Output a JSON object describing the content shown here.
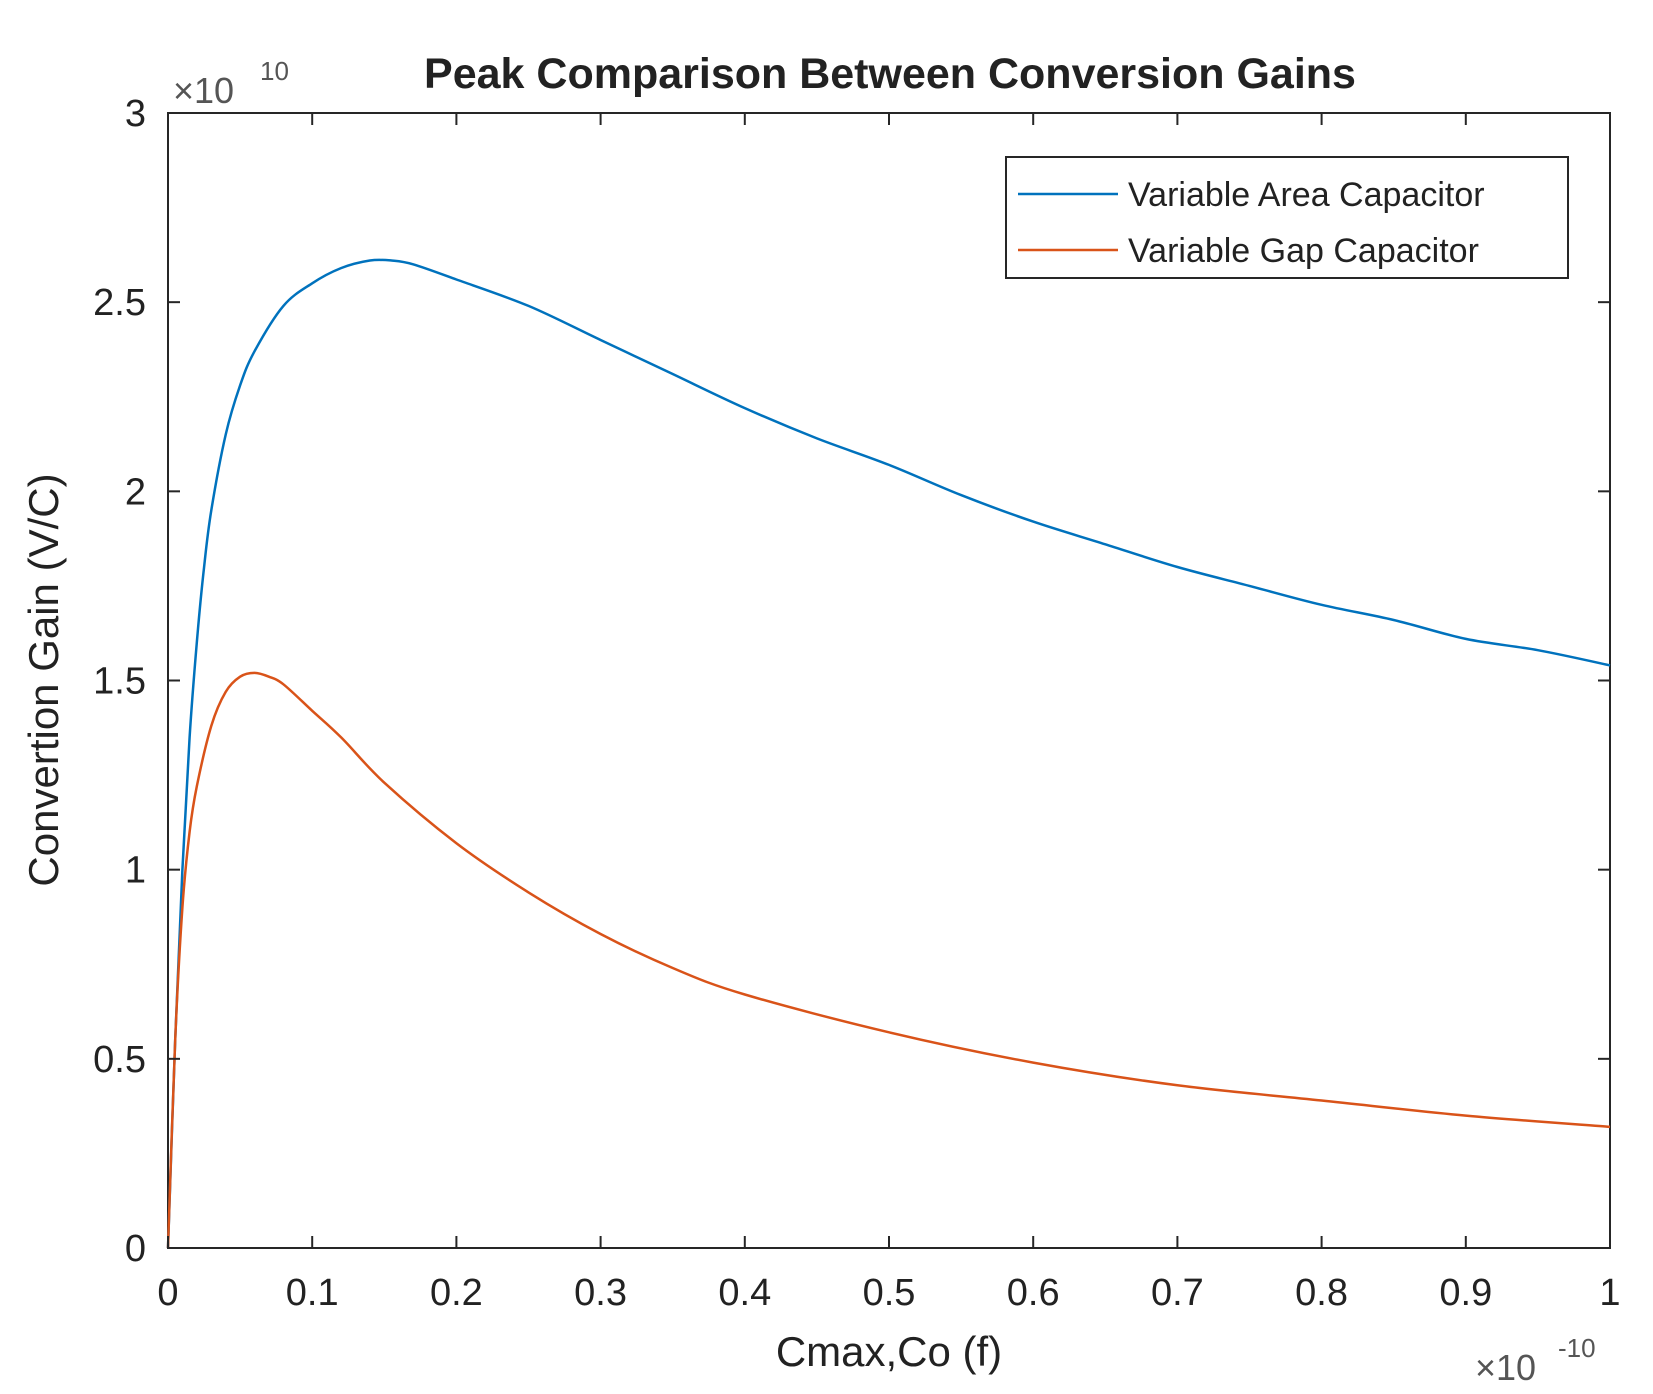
{
  "chart_data": {
    "type": "line",
    "title": "Peak Comparison Between Conversion Gains",
    "xlabel": "Cmax,Co (f)",
    "ylabel": "Convertion Gain (V/C)",
    "x_exponent": {
      "base": "×10",
      "power": "-10"
    },
    "y_exponent": {
      "base": "×10",
      "power": "10"
    },
    "xlim": [
      0,
      1
    ],
    "ylim": [
      0,
      3
    ],
    "x_ticks": [
      0,
      0.1,
      0.2,
      0.3,
      0.4,
      0.5,
      0.6,
      0.7,
      0.8,
      0.9,
      1
    ],
    "x_tick_labels": [
      "0",
      "0.1",
      "0.2",
      "0.3",
      "0.4",
      "0.5",
      "0.6",
      "0.7",
      "0.8",
      "0.9",
      "1"
    ],
    "y_ticks": [
      0,
      0.5,
      1,
      1.5,
      2,
      2.5,
      3
    ],
    "y_tick_labels": [
      "0",
      "0.5",
      "1",
      "1.5",
      "2",
      "2.5",
      "3"
    ],
    "grid": false,
    "legend_position": "top-right",
    "series": [
      {
        "name": "Variable Area Capacitor",
        "color": "#0072BD",
        "x": [
          0,
          0.005,
          0.01,
          0.015,
          0.02,
          0.025,
          0.03,
          0.04,
          0.05,
          0.06,
          0.08,
          0.1,
          0.12,
          0.14,
          0.155,
          0.17,
          0.2,
          0.25,
          0.3,
          0.35,
          0.4,
          0.45,
          0.5,
          0.55,
          0.6,
          0.65,
          0.7,
          0.75,
          0.8,
          0.85,
          0.9,
          0.95,
          1.0
        ],
        "y": [
          0,
          0.55,
          1.0,
          1.35,
          1.6,
          1.8,
          1.95,
          2.15,
          2.28,
          2.37,
          2.49,
          2.55,
          2.59,
          2.61,
          2.61,
          2.6,
          2.56,
          2.49,
          2.4,
          2.31,
          2.22,
          2.14,
          2.07,
          1.99,
          1.92,
          1.86,
          1.8,
          1.75,
          1.7,
          1.66,
          1.61,
          1.58,
          1.54
        ]
      },
      {
        "name": "Variable Gap Capacitor",
        "color": "#D95319",
        "x": [
          0,
          0.005,
          0.01,
          0.015,
          0.02,
          0.03,
          0.04,
          0.05,
          0.06,
          0.07,
          0.08,
          0.1,
          0.12,
          0.15,
          0.2,
          0.25,
          0.3,
          0.35,
          0.4,
          0.5,
          0.6,
          0.7,
          0.8,
          0.9,
          1.0
        ],
        "y": [
          0,
          0.55,
          0.9,
          1.1,
          1.22,
          1.38,
          1.47,
          1.51,
          1.52,
          1.51,
          1.49,
          1.42,
          1.35,
          1.23,
          1.07,
          0.94,
          0.83,
          0.74,
          0.67,
          0.57,
          0.49,
          0.43,
          0.39,
          0.35,
          0.32
        ]
      }
    ]
  }
}
